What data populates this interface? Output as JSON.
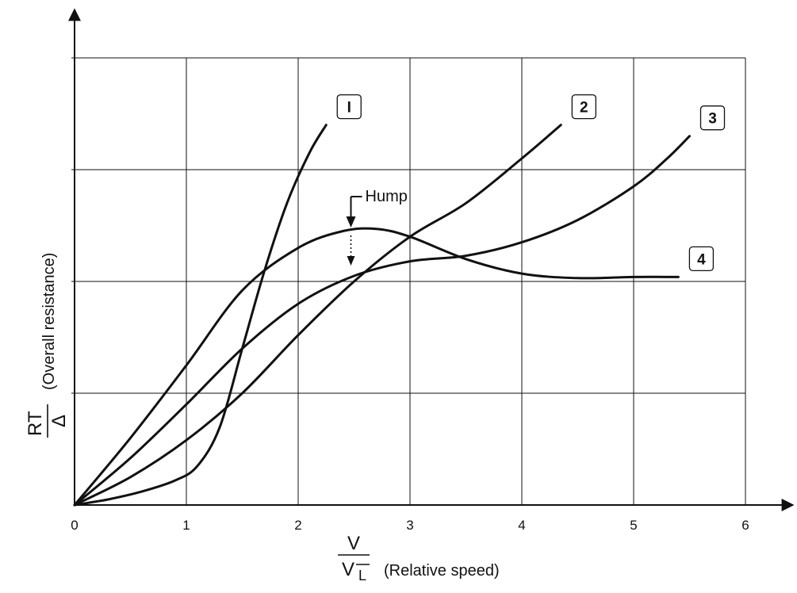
{
  "chart_data": {
    "type": "line",
    "xlim": [
      0,
      6
    ],
    "ylim": [
      0,
      4
    ],
    "grid": true,
    "x_ticks": [
      "0",
      "1",
      "2",
      "3",
      "4",
      "5",
      "6"
    ],
    "x_axis_label": {
      "numerator": "V",
      "denominator": "V",
      "denominator_subscript": "L",
      "text": "(Relative speed)"
    },
    "y_axis_label": {
      "numerator": "R",
      "numerator_subscript": "T",
      "denominator": "Δ",
      "text": "(Overall resistance)"
    },
    "series": [
      {
        "name": "I",
        "x": [
          0,
          0.3,
          0.6,
          0.9,
          1.1,
          1.3,
          1.5,
          1.7,
          1.9,
          2.1,
          2.25
        ],
        "y": [
          0,
          0.05,
          0.12,
          0.22,
          0.35,
          0.7,
          1.4,
          2.1,
          2.7,
          3.15,
          3.4
        ]
      },
      {
        "name": "2",
        "x": [
          0,
          0.5,
          1.0,
          1.5,
          2.0,
          2.5,
          3.0,
          3.5,
          4.0,
          4.35
        ],
        "y": [
          0,
          0.25,
          0.58,
          1.0,
          1.52,
          2.0,
          2.4,
          2.7,
          3.1,
          3.4
        ]
      },
      {
        "name": "3",
        "x": [
          0,
          0.5,
          1.0,
          1.5,
          2.0,
          2.5,
          3.0,
          3.5,
          4.0,
          4.5,
          5.0,
          5.3,
          5.5
        ],
        "y": [
          0,
          0.42,
          0.9,
          1.4,
          1.8,
          2.05,
          2.18,
          2.23,
          2.35,
          2.55,
          2.85,
          3.1,
          3.3
        ]
      },
      {
        "name": "4",
        "x": [
          0,
          0.5,
          1.0,
          1.5,
          2.0,
          2.4,
          2.7,
          3.0,
          3.5,
          4.0,
          4.5,
          5.0,
          5.4
        ],
        "y": [
          0,
          0.6,
          1.25,
          1.92,
          2.3,
          2.45,
          2.47,
          2.4,
          2.2,
          2.07,
          2.03,
          2.04,
          2.04
        ]
      }
    ],
    "series_labels": [
      "I",
      "2",
      "3",
      "4"
    ],
    "annotations": [
      {
        "text": "Hump",
        "x": 2.5,
        "y": 2.45
      }
    ]
  }
}
